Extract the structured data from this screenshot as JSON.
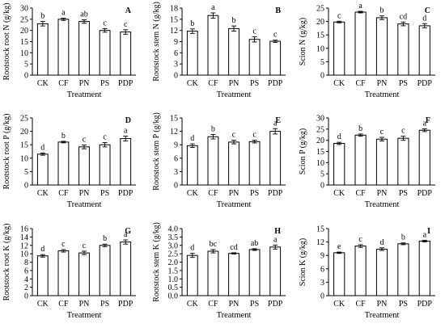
{
  "chart_data": [
    {
      "type": "bar",
      "panel_label": "A",
      "ylabel": "Rootstock root N (g/kg)",
      "xlabel": "Treatment",
      "categories": [
        "CK",
        "CF",
        "PN",
        "PS",
        "PDP"
      ],
      "yticks": [
        0,
        5,
        10,
        15,
        20,
        25,
        30
      ],
      "ylim": [
        0,
        30
      ],
      "values": [
        23,
        25,
        24,
        20,
        19.3
      ],
      "errors": [
        1.0,
        0.5,
        0.8,
        0.8,
        1.0
      ],
      "letters": [
        "b",
        "a",
        "ab",
        "c",
        "c"
      ]
    },
    {
      "type": "bar",
      "panel_label": "B",
      "ylabel": "Rootstock stem N (g/kg)",
      "xlabel": "Treatment",
      "categories": [
        "CK",
        "CF",
        "PN",
        "PS",
        "PDP"
      ],
      "yticks": [
        0,
        3,
        6,
        9,
        12,
        15,
        18
      ],
      "ylim": [
        0,
        18
      ],
      "values": [
        11.8,
        16,
        12.5,
        9.6,
        9.1
      ],
      "errors": [
        0.6,
        0.7,
        0.7,
        0.7,
        0.3
      ],
      "letters": [
        "b",
        "a",
        "b",
        "c",
        "c"
      ]
    },
    {
      "type": "bar",
      "panel_label": "C",
      "ylabel": "Scion N (g/kg)",
      "xlabel": "Treatment",
      "categories": [
        "CK",
        "CF",
        "PN",
        "PS",
        "PDP"
      ],
      "yticks": [
        0,
        5,
        10,
        15,
        20,
        25
      ],
      "ylim": [
        0,
        25
      ],
      "values": [
        19.8,
        23.5,
        21.4,
        19.1,
        18.4
      ],
      "errors": [
        0.3,
        0.3,
        0.7,
        0.7,
        0.8
      ],
      "letters": [
        "c",
        "a",
        "b",
        "cd",
        "d"
      ]
    },
    {
      "type": "bar",
      "panel_label": "D",
      "ylabel": "Rootstock root P (g/kg)",
      "xlabel": "Treatment",
      "categories": [
        "CK",
        "CF",
        "PN",
        "PS",
        "PDP"
      ],
      "yticks": [
        0,
        5,
        10,
        15,
        20,
        25
      ],
      "ylim": [
        0,
        25
      ],
      "values": [
        11.5,
        16,
        14.2,
        15,
        17.3
      ],
      "errors": [
        0.4,
        0.3,
        0.7,
        0.8,
        0.9
      ],
      "letters": [
        "d",
        "b",
        "c",
        "c",
        "a"
      ]
    },
    {
      "type": "bar",
      "panel_label": "E",
      "ylabel": "Rootstock stem P (g/kg)",
      "xlabel": "Treatment",
      "categories": [
        "CK",
        "CF",
        "PN",
        "PS",
        "PDP"
      ],
      "yticks": [
        0,
        3,
        6,
        9,
        12,
        15
      ],
      "ylim": [
        0,
        15
      ],
      "values": [
        8.8,
        10.8,
        9.6,
        9.7,
        12.0
      ],
      "errors": [
        0.4,
        0.5,
        0.4,
        0.3,
        0.6
      ],
      "letters": [
        "d",
        "b",
        "c",
        "c",
        "a"
      ]
    },
    {
      "type": "bar",
      "panel_label": "F",
      "ylabel": "Scion P (g/kg)",
      "xlabel": "Treatment",
      "categories": [
        "CK",
        "CF",
        "PN",
        "PS",
        "PDP"
      ],
      "yticks": [
        0,
        5,
        10,
        15,
        20,
        25,
        30
      ],
      "ylim": [
        0,
        30
      ],
      "values": [
        18.6,
        22.3,
        20.5,
        20.9,
        24.5
      ],
      "errors": [
        0.5,
        0.5,
        0.8,
        0.9,
        0.6
      ],
      "letters": [
        "d",
        "b",
        "c",
        "c",
        "a"
      ]
    },
    {
      "type": "bar",
      "panel_label": "G",
      "ylabel": "Rootstock root K (g/kg)",
      "xlabel": "Treatment",
      "categories": [
        "CK",
        "CF",
        "PN",
        "PS",
        "PDP"
      ],
      "yticks": [
        0,
        2,
        4,
        6,
        8,
        10,
        12,
        14,
        16
      ],
      "ylim": [
        0,
        16
      ],
      "values": [
        9.5,
        10.7,
        10.2,
        12,
        12.8
      ],
      "errors": [
        0.3,
        0.3,
        0.4,
        0.3,
        0.5
      ],
      "letters": [
        "d",
        "c",
        "c",
        "b",
        "a"
      ]
    },
    {
      "type": "bar",
      "panel_label": "H",
      "ylabel": "Rootstock stem K (g/kg)",
      "xlabel": "Treatment",
      "categories": [
        "CK",
        "CF",
        "PN",
        "PS",
        "PDP"
      ],
      "yticks": [
        "0.0",
        "0.5",
        "1.0",
        "1.5",
        "2.0",
        "2.5",
        "3.0",
        "3.5",
        "4.0"
      ],
      "ylim": [
        0,
        4
      ],
      "values": [
        2.4,
        2.65,
        2.52,
        2.75,
        2.9
      ],
      "errors": [
        0.12,
        0.1,
        0.04,
        0.05,
        0.12
      ],
      "letters": [
        "d",
        "bc",
        "cd",
        "ab",
        "a"
      ]
    },
    {
      "type": "bar",
      "panel_label": "I",
      "ylabel": "Scion K (g/kg)",
      "xlabel": "Treatment",
      "categories": [
        "CK",
        "CF",
        "PN",
        "PS",
        "PDP"
      ],
      "yticks": [
        0,
        3,
        6,
        9,
        12,
        15
      ],
      "ylim": [
        0,
        15
      ],
      "values": [
        9.6,
        11.1,
        10.4,
        11.6,
        12.2
      ],
      "errors": [
        0.15,
        0.3,
        0.3,
        0.2,
        0.2
      ],
      "letters": [
        "e",
        "c",
        "d",
        "b",
        "a"
      ]
    }
  ]
}
